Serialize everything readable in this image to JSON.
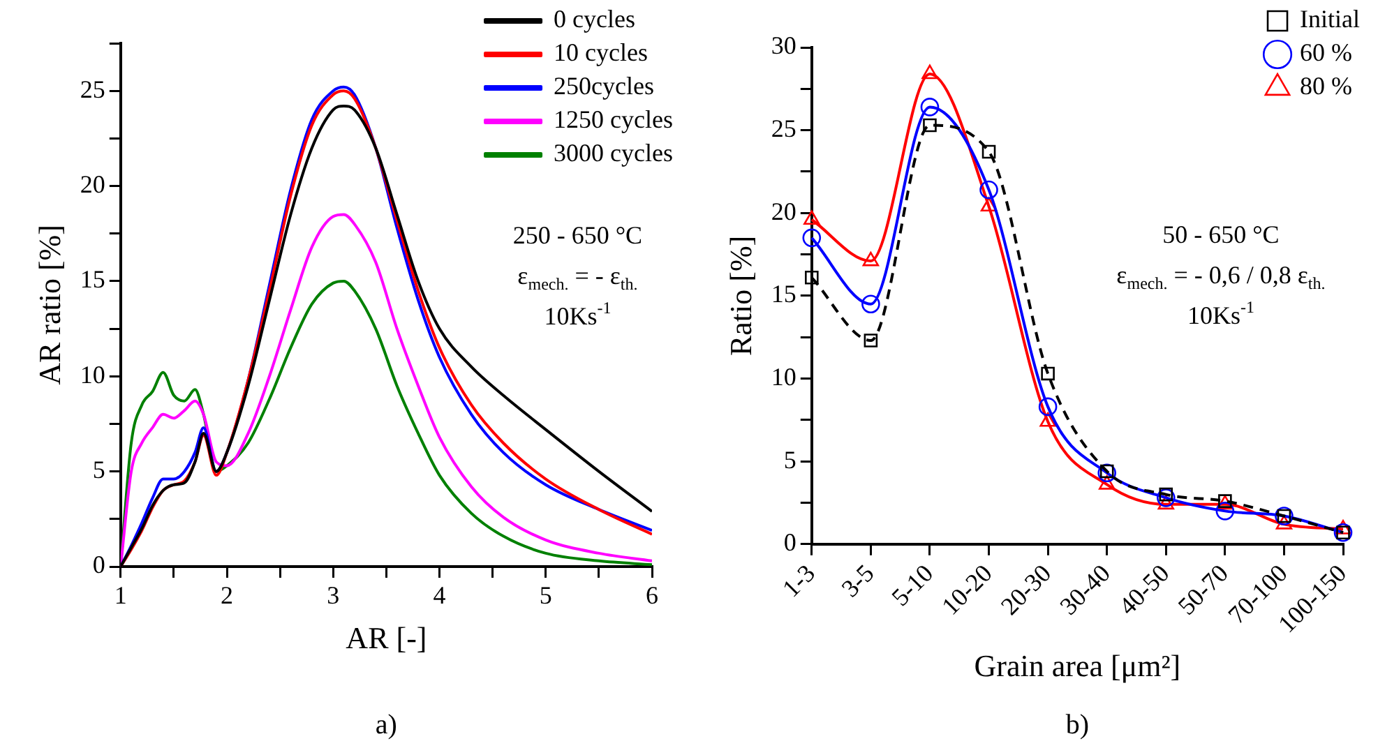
{
  "chart_data": [
    {
      "type": "line",
      "xlabel": "AR [-]",
      "ylabel": "AR ratio [%]",
      "xlim": [
        1,
        6
      ],
      "xticks": [
        1,
        {
          "value": 1.5,
          "label": null
        },
        2,
        {
          "value": 2.5,
          "label": null
        },
        3,
        {
          "value": 3.5,
          "label": null
        },
        4,
        {
          "value": 4.5,
          "label": null
        },
        5,
        {
          "value": 5.5,
          "label": null
        },
        6
      ],
      "ylim": [
        0,
        27.5
      ],
      "yticks": [
        0,
        {
          "value": 2.5,
          "label": null
        },
        5,
        {
          "value": 7.5,
          "label": null
        },
        10,
        {
          "value": 12.5,
          "label": null
        },
        15,
        {
          "value": 17.5,
          "label": null
        },
        20,
        {
          "value": 22.5,
          "label": null
        },
        25,
        {
          "value": 27.5,
          "label": null
        }
      ],
      "grid": false,
      "legend": "top right",
      "marker": "none",
      "line_style": "solid",
      "x": [
        1,
        1.1,
        1.2,
        1.3,
        1.4,
        1.5,
        1.6,
        1.7,
        1.78,
        1.9,
        2.0,
        2.2,
        2.4,
        2.6,
        2.8,
        3.0,
        3.1,
        3.2,
        3.4,
        3.6,
        3.8,
        4.0,
        4.3,
        4.6,
        5.0,
        5.5,
        6.0
      ],
      "series": [
        {
          "name": "0 cycles",
          "color": "#000000",
          "values": [
            0,
            1.0,
            2.0,
            3.2,
            4.0,
            4.3,
            4.4,
            5.5,
            7.0,
            5.0,
            6.0,
            9.5,
            14.0,
            18.5,
            22.0,
            24.0,
            24.2,
            24.0,
            22.0,
            18.5,
            15.0,
            12.5,
            10.5,
            9.0,
            7.2,
            5.0,
            2.9
          ]
        },
        {
          "name": "10 cycles",
          "color": "#ff0000",
          "values": [
            0,
            0.9,
            1.9,
            3.1,
            4.0,
            4.3,
            4.5,
            5.5,
            6.9,
            4.8,
            6.0,
            9.8,
            14.5,
            19.5,
            23.2,
            24.8,
            25.0,
            24.6,
            22.0,
            18.2,
            14.5,
            11.5,
            8.5,
            6.5,
            4.6,
            3.0,
            1.7
          ]
        },
        {
          "name": "250cycles",
          "color": "#0000ff",
          "values": [
            0,
            1.1,
            2.3,
            3.6,
            4.6,
            4.6,
            5.0,
            6.0,
            7.3,
            5.0,
            6.0,
            9.8,
            14.8,
            19.8,
            23.5,
            25.0,
            25.2,
            24.8,
            22.0,
            17.8,
            14.0,
            11.0,
            8.0,
            6.0,
            4.3,
            3.0,
            1.9
          ]
        },
        {
          "name": "1250 cycles",
          "color": "#ff00ff",
          "values": [
            0,
            5.0,
            6.5,
            7.3,
            8.0,
            7.8,
            8.2,
            8.7,
            8.0,
            5.5,
            5.3,
            7.0,
            10.0,
            13.5,
            16.8,
            18.4,
            18.5,
            18.0,
            16.0,
            12.5,
            9.5,
            6.8,
            4.2,
            2.6,
            1.4,
            0.7,
            0.3
          ]
        },
        {
          "name": "3000 cycles",
          "color": "#008000",
          "values": [
            0,
            6.5,
            8.5,
            9.2,
            10.2,
            9.0,
            8.7,
            9.3,
            8.0,
            5.0,
            5.3,
            6.5,
            8.8,
            11.5,
            13.8,
            14.9,
            15.0,
            14.5,
            12.5,
            9.5,
            7.0,
            4.8,
            2.8,
            1.6,
            0.7,
            0.3,
            0.1
          ]
        }
      ],
      "annotations": [
        "250 - 650 °C",
        "ε$_{mech.}$ = - ε$_{th.}$",
        "10Ks$^{-1}$",
        "a)"
      ]
    },
    {
      "type": "line",
      "xlabel": "Grain area [μm²]",
      "ylabel": "Ratio [%]",
      "categories": [
        "1-3",
        "3-5",
        "5-10",
        "10-20",
        "20-30",
        "30-40",
        "40-50",
        "50-70",
        "70-100",
        "100-150"
      ],
      "ylim": [
        0,
        30
      ],
      "yticks": [
        0,
        {
          "value": 2.5,
          "label": null
        },
        5,
        {
          "value": 7.5,
          "label": null
        },
        10,
        {
          "value": 12.5,
          "label": null
        },
        15,
        {
          "value": 17.5,
          "label": null
        },
        20,
        {
          "value": 22.5,
          "label": null
        },
        25,
        {
          "value": 27.5,
          "label": null
        },
        30
      ],
      "grid": false,
      "legend": "top right",
      "series": [
        {
          "name": "Initial",
          "color": "#000000",
          "marker": "square",
          "line_style": "dashed",
          "values": [
            16.1,
            12.3,
            25.3,
            23.7,
            10.3,
            4.4,
            3.0,
            2.6,
            1.7,
            0.7
          ]
        },
        {
          "name": "60 %",
          "color": "#0000ff",
          "marker": "circle",
          "line_style": "solid",
          "values": [
            18.5,
            14.5,
            26.4,
            21.4,
            8.3,
            4.3,
            2.8,
            2.0,
            1.7,
            0.7
          ]
        },
        {
          "name": "80 %",
          "color": "#ff0000",
          "marker": "triangle",
          "line_style": "solid",
          "values": [
            19.6,
            17.1,
            28.4,
            20.4,
            7.4,
            3.6,
            2.4,
            2.4,
            1.2,
            0.9
          ]
        }
      ],
      "annotations": [
        "50 - 650 °C",
        "ε$_{mech.}$ = - 0,6 / 0,8 ε$_{th.}$",
        "10Ks$^{-1}$",
        "b)"
      ]
    }
  ]
}
